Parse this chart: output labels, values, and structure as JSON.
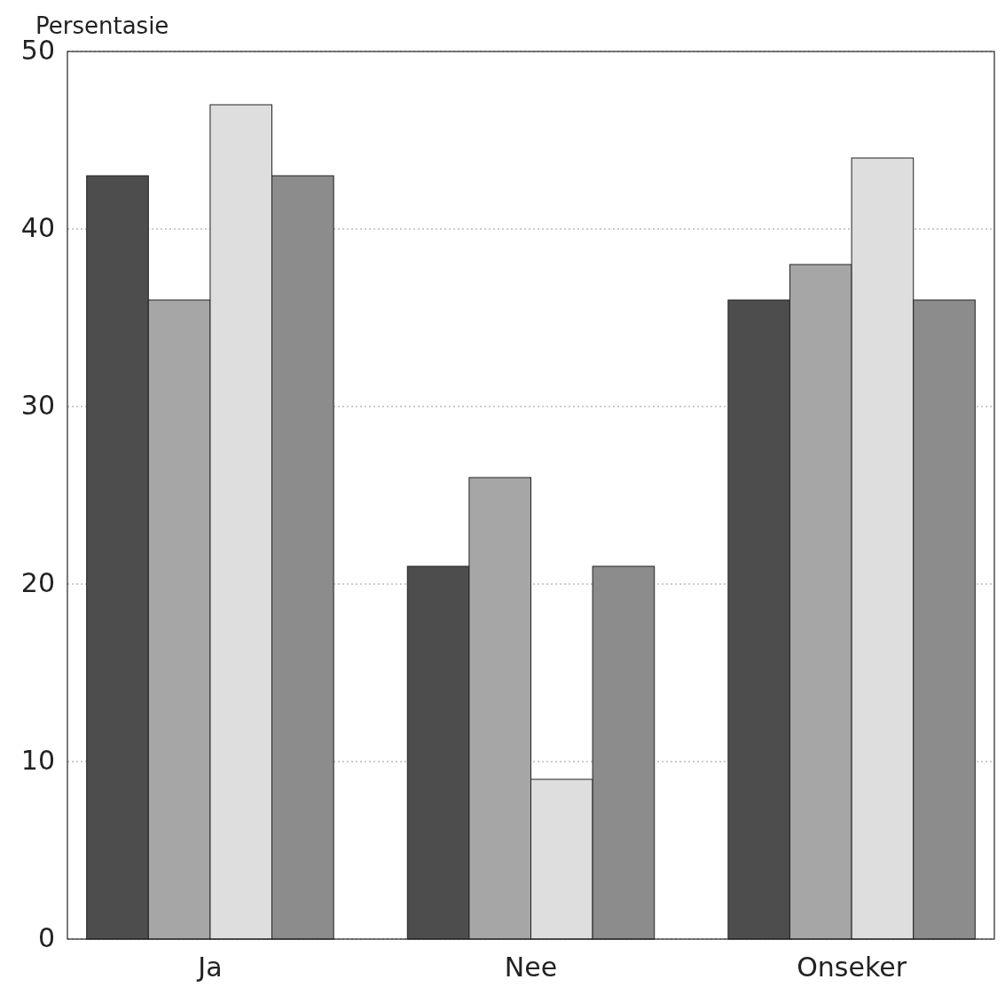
{
  "chart_data": {
    "type": "bar",
    "ylabel": "Persentasie",
    "categories": [
      "Ja",
      "Nee",
      "Onseker"
    ],
    "series": [
      {
        "color": "#4d4d4d",
        "values": [
          43,
          21,
          36
        ]
      },
      {
        "color": "#a6a6a6",
        "values": [
          36,
          26,
          38
        ]
      },
      {
        "color": "#dedede",
        "values": [
          47,
          9,
          44
        ]
      },
      {
        "color": "#8c8c8c",
        "values": [
          43,
          21,
          36
        ]
      }
    ],
    "ylim": [
      0,
      50
    ],
    "yticks": [
      0,
      10,
      20,
      30,
      40,
      50
    ],
    "grid": "y"
  }
}
